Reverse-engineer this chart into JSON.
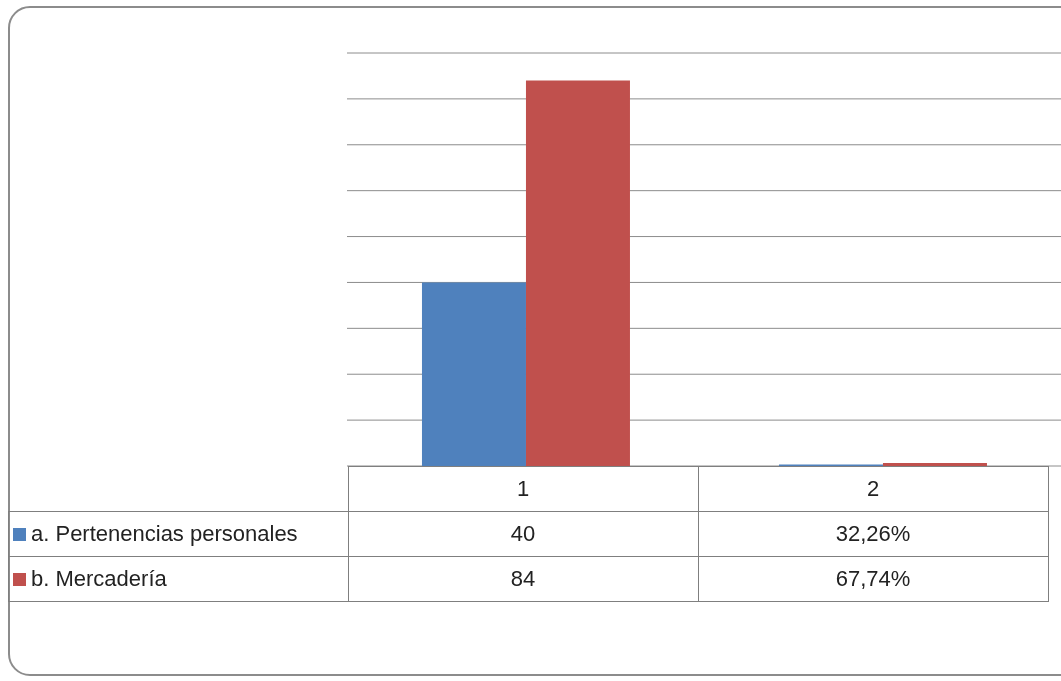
{
  "chart_data": {
    "type": "bar",
    "categories": [
      "1",
      "2"
    ],
    "series": [
      {
        "name": "a. Pertenencias personales",
        "color": "#4f81bd",
        "values": [
          40,
          0.3226
        ],
        "value_labels": [
          "40",
          "32,26%"
        ]
      },
      {
        "name": "b. Mercadería",
        "color": "#c0504d",
        "values": [
          84,
          0.6774
        ],
        "value_labels": [
          "84",
          "67,74%"
        ]
      }
    ],
    "ylim": [
      0,
      90
    ],
    "yticks": [
      {
        "value": 0,
        "label": null
      },
      {
        "value": 10,
        "label": null
      },
      {
        "value": 20,
        "label": null
      },
      {
        "value": 30,
        "label": null
      },
      {
        "value": 40,
        "label": null
      },
      {
        "value": 50,
        "label": null
      },
      {
        "value": 60,
        "label": null
      },
      {
        "value": 70,
        "label": null
      },
      {
        "value": 80,
        "label": null
      },
      {
        "value": 90,
        "label": null
      }
    ],
    "tick_labels": "x",
    "grid": "y",
    "legend": "bottom"
  }
}
